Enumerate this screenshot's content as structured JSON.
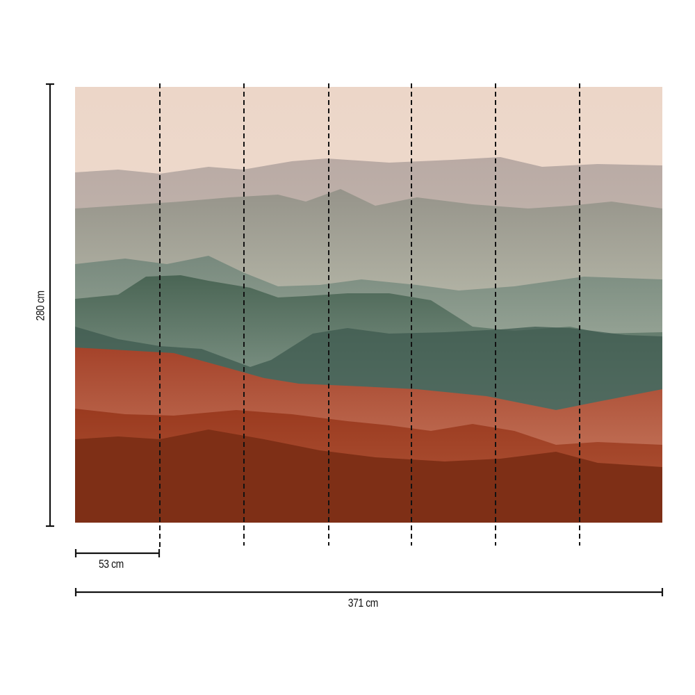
{
  "dimensions": {
    "height_label": "280 cm",
    "panel_width_label": "53 cm",
    "total_width_label": "371 cm",
    "panel_count": 7
  },
  "colors": {
    "sky": "#efd9cc",
    "mist_green": "#9fae9c",
    "dark_green": "#3e5a4f",
    "terracotta": "#a8462a",
    "rust": "#7e2f16"
  }
}
